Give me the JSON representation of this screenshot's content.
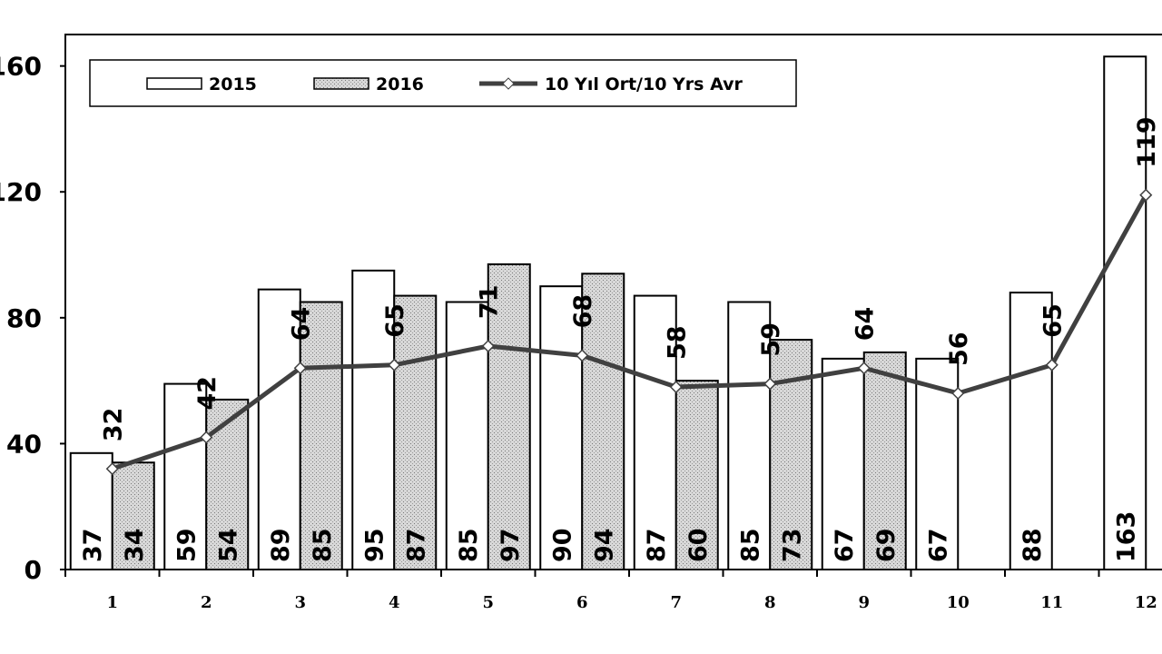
{
  "chart_data": {
    "type": "bar",
    "categories": [
      "1",
      "2",
      "3",
      "4",
      "5",
      "6",
      "7",
      "8",
      "9",
      "10",
      "11",
      "12"
    ],
    "series": [
      {
        "name": "2015",
        "type": "bar",
        "color": "#ffffff",
        "values": [
          37,
          59,
          89,
          95,
          85,
          90,
          87,
          85,
          67,
          67,
          88,
          163
        ]
      },
      {
        "name": "2016",
        "type": "bar",
        "color": "#c8c8c8",
        "values": [
          34,
          54,
          85,
          87,
          97,
          94,
          60,
          73,
          69,
          null,
          null,
          null
        ]
      },
      {
        "name": "10 Yıl Ort/10 Yrs Avr",
        "type": "line",
        "color": "#404040",
        "values": [
          32,
          42,
          64,
          65,
          71,
          68,
          58,
          59,
          64,
          56,
          65,
          119
        ]
      }
    ],
    "ylim": [
      0,
      170
    ],
    "yticks": [
      0,
      40,
      80,
      120,
      160
    ],
    "grid": false,
    "legend": "top-left"
  }
}
